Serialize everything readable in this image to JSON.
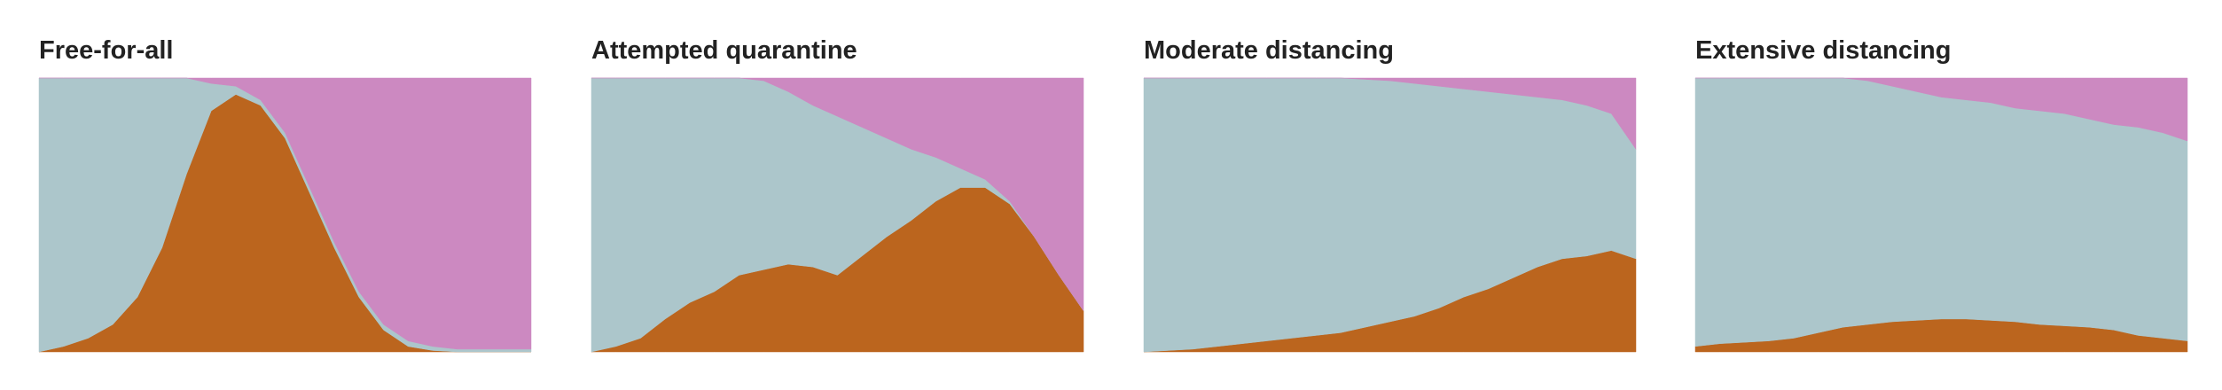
{
  "chart_data": [
    {
      "type": "area",
      "title": "Free-for-all",
      "ylim": [
        0,
        100
      ],
      "stacked": true,
      "series": [
        {
          "color": "#bb651e",
          "values": [
            0,
            2,
            5,
            10,
            20,
            38,
            65,
            88,
            94,
            90,
            78,
            58,
            38,
            20,
            8,
            2,
            0.5,
            0,
            0,
            0,
            0
          ]
        },
        {
          "color": "#acc6cb",
          "values": [
            100,
            98,
            95,
            90,
            80,
            62,
            35,
            10,
            3,
            2,
            2,
            2,
            2,
            2,
            2,
            2,
            1.5,
            1,
            1,
            1,
            1
          ]
        },
        {
          "color": "#cc89c1",
          "values": [
            0,
            0,
            0,
            0,
            0,
            0,
            0,
            2,
            3,
            8,
            20,
            40,
            60,
            78,
            90,
            96,
            98,
            99,
            99,
            99,
            99
          ]
        }
      ]
    },
    {
      "type": "area",
      "title": "Attempted quarantine",
      "ylim": [
        0,
        100
      ],
      "stacked": true,
      "series": [
        {
          "color": "#bb651e",
          "values": [
            0,
            2,
            5,
            12,
            18,
            22,
            28,
            30,
            32,
            31,
            28,
            35,
            42,
            48,
            55,
            60,
            60,
            54,
            42,
            28,
            15
          ]
        },
        {
          "color": "#acc6cb",
          "values": [
            100,
            98,
            95,
            88,
            82,
            78,
            72,
            69,
            63,
            59,
            58,
            47,
            36,
            26,
            16,
            7,
            3,
            1,
            0,
            0,
            0
          ]
        },
        {
          "color": "#cc89c1",
          "values": [
            0,
            0,
            0,
            0,
            0,
            0,
            0,
            1,
            5,
            10,
            14,
            18,
            22,
            26,
            29,
            33,
            37,
            45,
            58,
            72,
            85
          ]
        }
      ]
    },
    {
      "type": "area",
      "title": "Moderate distancing",
      "ylim": [
        0,
        100
      ],
      "stacked": true,
      "series": [
        {
          "color": "#bb651e",
          "values": [
            0,
            0.5,
            1,
            2,
            3,
            4,
            5,
            6,
            7,
            9,
            11,
            13,
            16,
            20,
            23,
            27,
            31,
            34,
            35,
            37,
            34
          ]
        },
        {
          "color": "#acc6cb",
          "values": [
            100,
            99.5,
            99,
            98,
            97,
            96,
            95,
            94,
            93,
            90.5,
            88,
            85,
            81,
            76,
            72,
            67,
            62,
            58,
            55,
            50,
            40
          ]
        },
        {
          "color": "#cc89c1",
          "values": [
            0,
            0,
            0,
            0,
            0,
            0,
            0,
            0,
            0,
            0.5,
            1,
            2,
            3,
            4,
            5,
            6,
            7,
            8,
            10,
            13,
            26
          ]
        }
      ]
    },
    {
      "type": "area",
      "title": "Extensive distancing",
      "ylim": [
        0,
        100
      ],
      "stacked": true,
      "series": [
        {
          "color": "#bb651e",
          "values": [
            2,
            3,
            3.5,
            4,
            5,
            7,
            9,
            10,
            11,
            11.5,
            12,
            12,
            11.5,
            11,
            10,
            9.5,
            9,
            8,
            6,
            5,
            4
          ]
        },
        {
          "color": "#acc6cb",
          "values": [
            98,
            97,
            96.5,
            96,
            95,
            93,
            91,
            89,
            86,
            83.5,
            81,
            80,
            79.5,
            78,
            78,
            77.5,
            76,
            75,
            76,
            75,
            73
          ]
        },
        {
          "color": "#cc89c1",
          "values": [
            0,
            0,
            0,
            0,
            0,
            0,
            0,
            1,
            3,
            5,
            7,
            8,
            9,
            11,
            12,
            13,
            15,
            17,
            18,
            20,
            23
          ]
        }
      ]
    }
  ]
}
